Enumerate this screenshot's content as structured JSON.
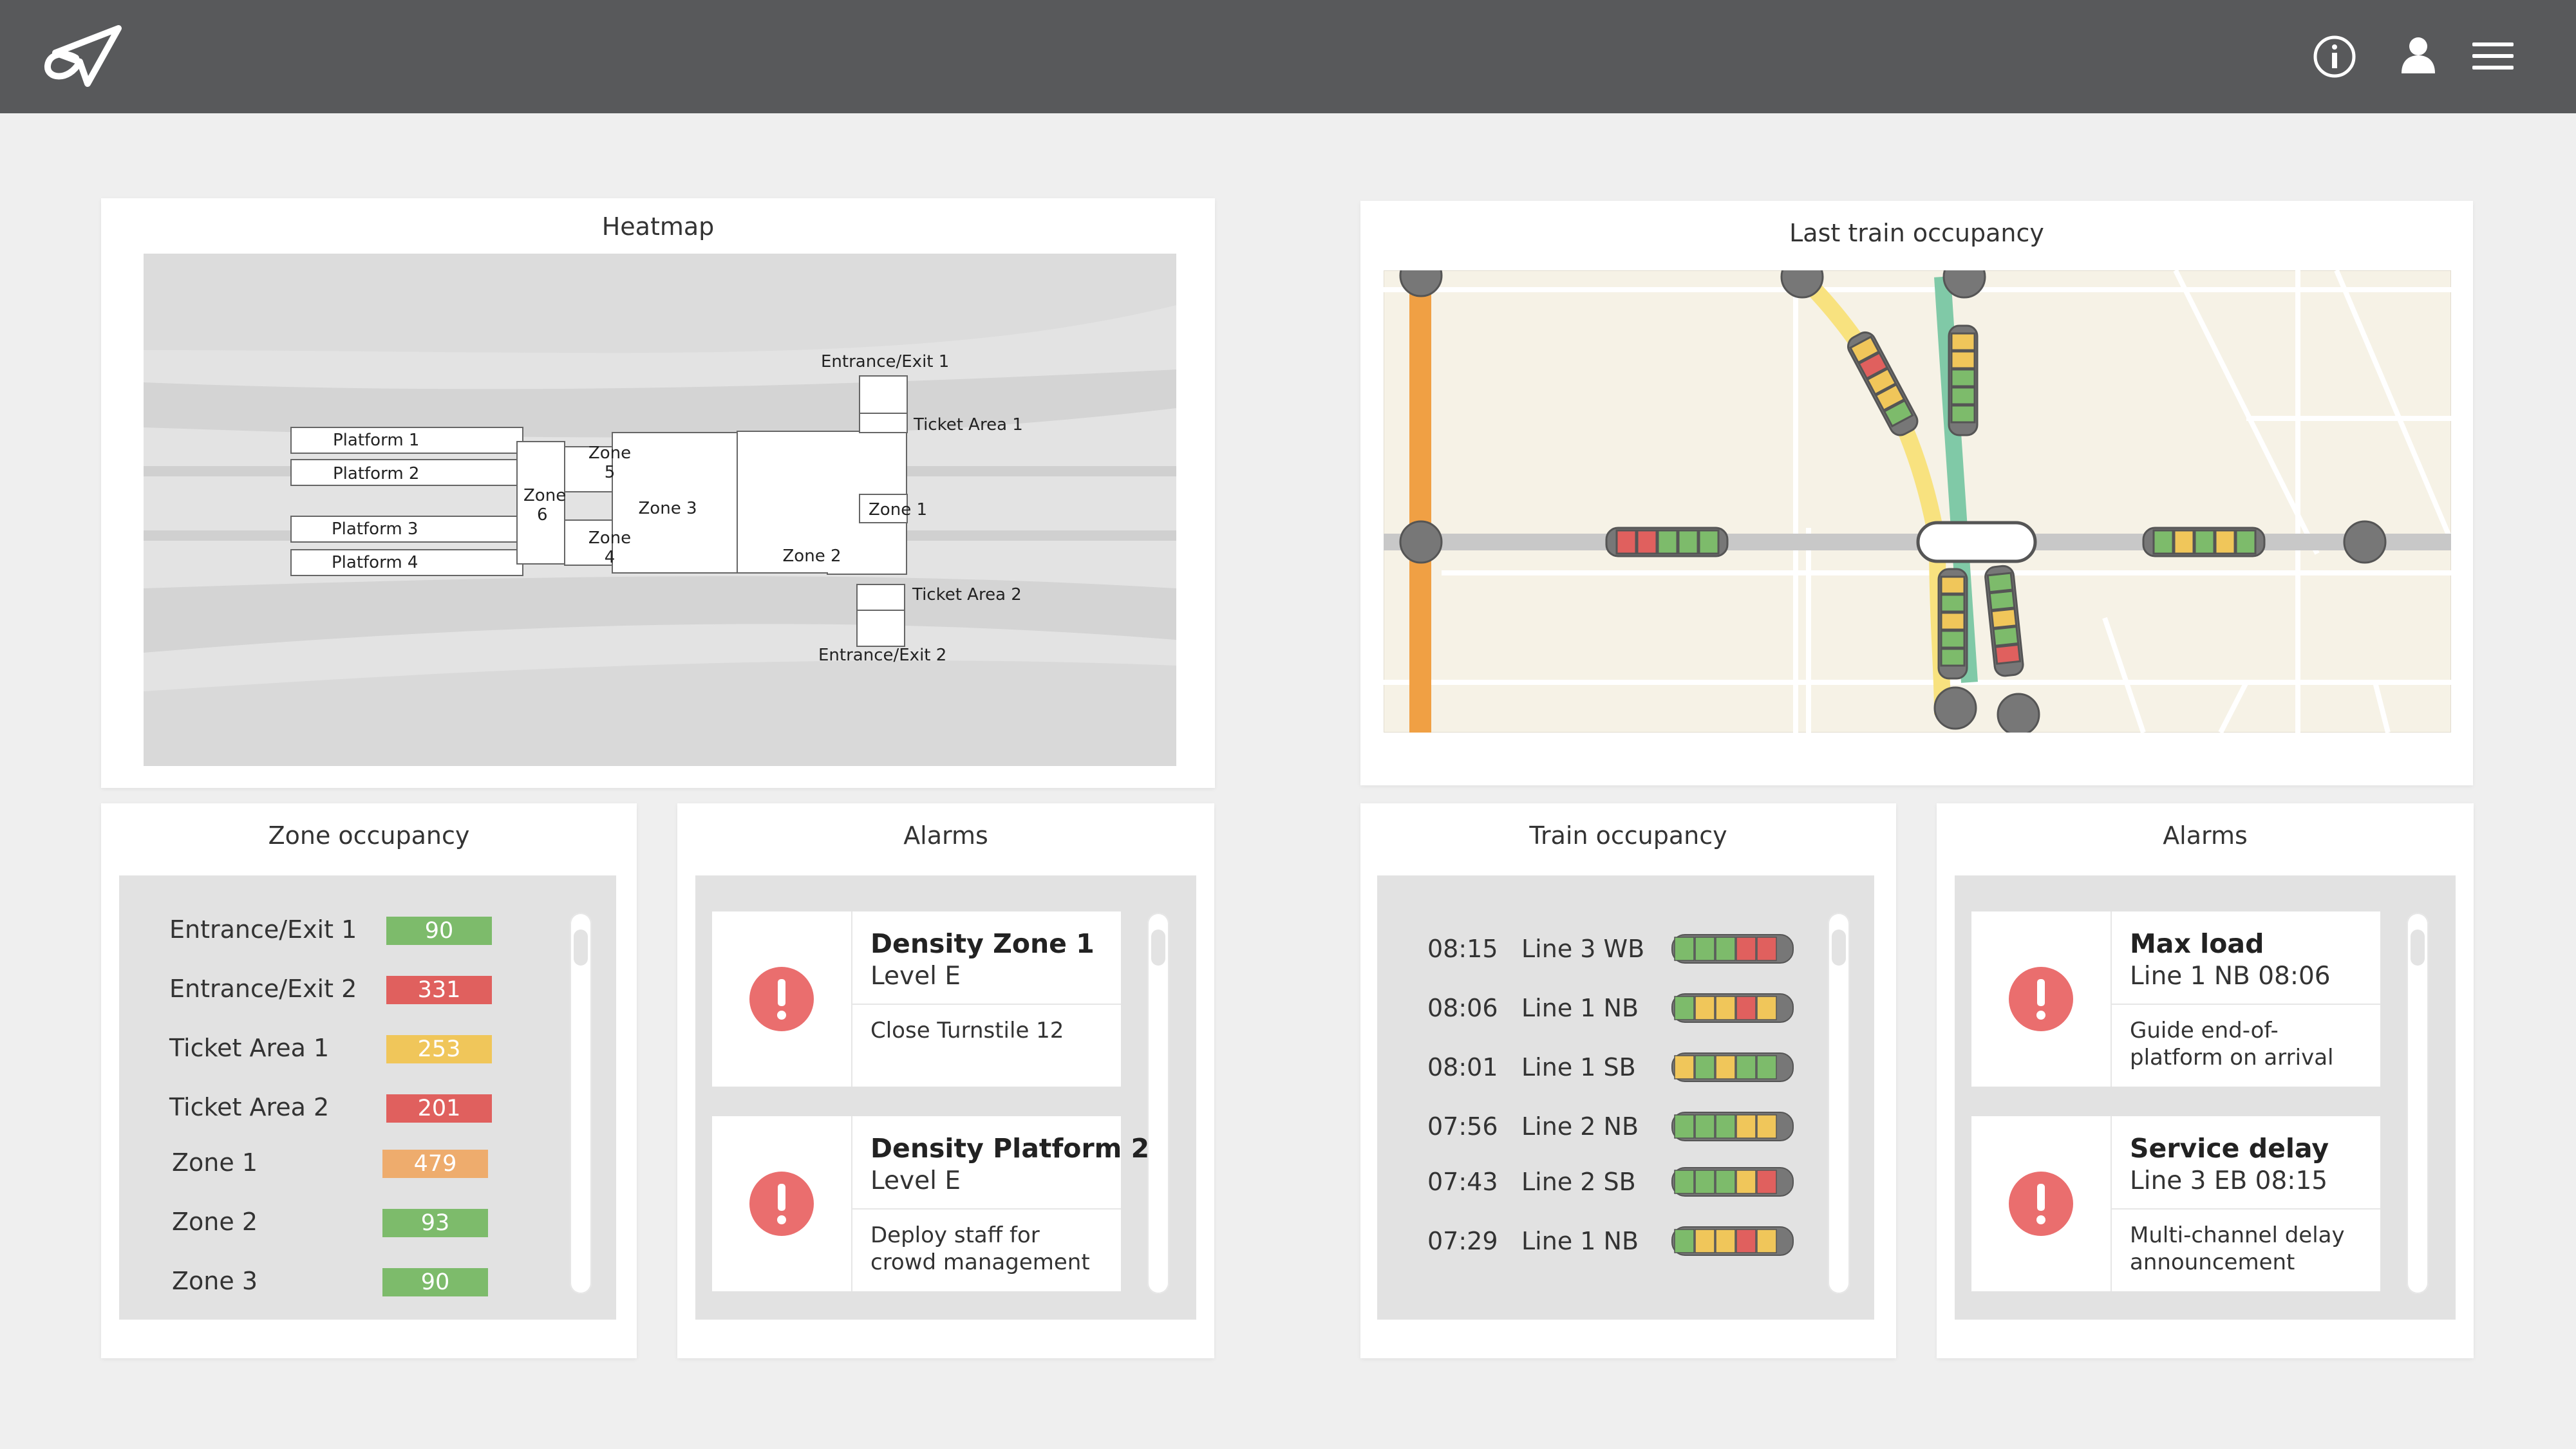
{
  "colors": {
    "topbar": "#58595b",
    "background": "#efefef",
    "green": "#7dbb6b",
    "red": "#e0605e",
    "yellow": "#f0c65a",
    "orange": "#eeac6d",
    "line_orange": "#f0a044",
    "line_yellow": "#f8e27f",
    "line_teal": "#80c9a7",
    "alarm_red": "#ea6e6e"
  },
  "header": {
    "logo_icon": "paper-plane-loop-logo",
    "icons": [
      "info-icon",
      "user-icon",
      "hamburger-menu-icon"
    ]
  },
  "heatmap": {
    "title": "Heatmap",
    "labels": {
      "platform1": "Platform 1",
      "platform2": "Platform 2",
      "platform3": "Platform 3",
      "platform4": "Platform 4",
      "zone1": "Zone 1",
      "zone2": "Zone 2",
      "zone3": "Zone 3",
      "zone4a": "Zone",
      "zone4b": "4",
      "zone5a": "Zone",
      "zone5b": "5",
      "zone6a": "Zone",
      "zone6b": "6",
      "entrance1": "Entrance/Exit 1",
      "entrance2": "Entrance/Exit 2",
      "ticket1": "Ticket Area 1",
      "ticket2": "Ticket Area 2"
    }
  },
  "last_train": {
    "title": "Last train occupancy"
  },
  "zone_occupancy": {
    "title": "Zone occupancy",
    "rows": [
      {
        "label": "Entrance/Exit 1",
        "value": "90",
        "color": "#7dbb6b"
      },
      {
        "label": "Entrance/Exit 2",
        "value": "331",
        "color": "#e0605e"
      },
      {
        "label": "Ticket Area 1",
        "value": "253",
        "color": "#f0c65a"
      },
      {
        "label": "Ticket Area 2",
        "value": "201",
        "color": "#e0605e"
      },
      {
        "label": "Zone 1",
        "value": "479",
        "color": "#eeac6d"
      },
      {
        "label": "Zone 2",
        "value": "93",
        "color": "#7dbb6b"
      },
      {
        "label": "Zone 3",
        "value": "90",
        "color": "#7dbb6b"
      }
    ]
  },
  "alarms_left": {
    "title": "Alarms",
    "items": [
      {
        "title": "Density Zone 1",
        "sub": "Level E",
        "action": "Close Turnstile 12"
      },
      {
        "title": "Density Platform 2",
        "sub": "Level E",
        "action": "Deploy staff for crowd management"
      }
    ]
  },
  "train_occupancy": {
    "title": "Train occupancy",
    "rows": [
      {
        "time": "08:15",
        "line": "Line 3 WB",
        "cars": [
          "g",
          "g",
          "g",
          "r",
          "r"
        ]
      },
      {
        "time": "08:06",
        "line": "Line 1 NB",
        "cars": [
          "g",
          "y",
          "y",
          "r",
          "y"
        ]
      },
      {
        "time": "08:01",
        "line": "Line 1 SB",
        "cars": [
          "y",
          "g",
          "y",
          "g",
          "g"
        ]
      },
      {
        "time": "07:56",
        "line": "Line 2 NB",
        "cars": [
          "g",
          "g",
          "g",
          "y",
          "y"
        ]
      },
      {
        "time": "07:43",
        "line": "Line 2 SB",
        "cars": [
          "g",
          "g",
          "g",
          "y",
          "r"
        ]
      },
      {
        "time": "07:29",
        "line": "Line 1 NB",
        "cars": [
          "g",
          "y",
          "y",
          "r",
          "y"
        ]
      }
    ]
  },
  "alarms_right": {
    "title": "Alarms",
    "items": [
      {
        "title": "Max load",
        "sub": "Line 1 NB 08:06",
        "action": "Guide end-of-platform on arrival"
      },
      {
        "title": "Service delay",
        "sub": "Line 3 EB 08:15",
        "action": "Multi-channel delay announcement"
      }
    ]
  }
}
